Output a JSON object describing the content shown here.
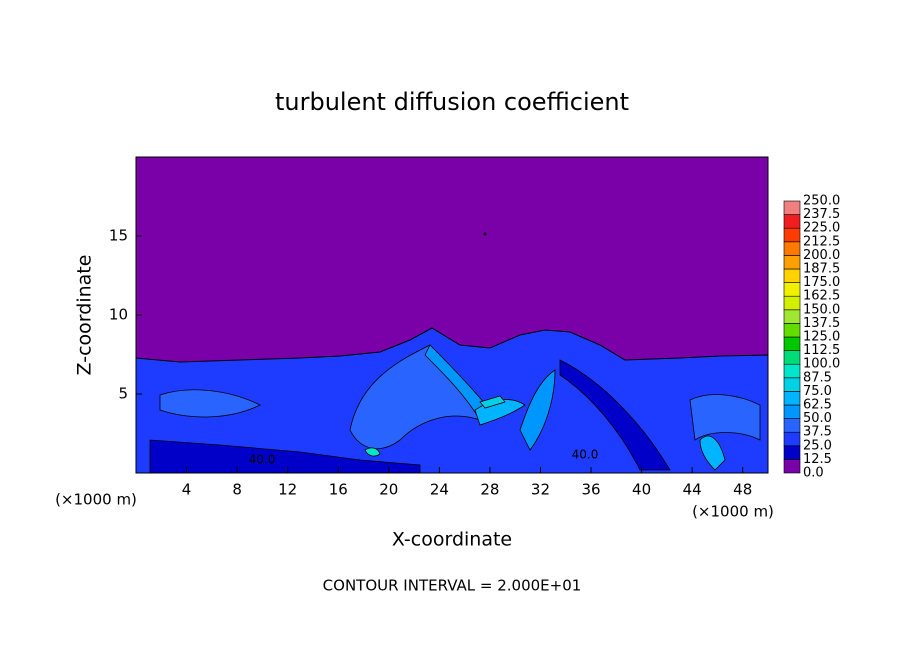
{
  "chart_data": {
    "type": "contour",
    "title": "turbulent diffusion coefficient",
    "x_label": "X-coordinate",
    "y_label": "Z-coordinate",
    "x_unit_left": "(×1000 m)",
    "x_unit_right": "(×1000 m)",
    "footer": "CONTOUR INTERVAL = 2.000E+01",
    "contour_labels": [
      "40.0",
      "40.0"
    ],
    "xlim": [
      0,
      50
    ],
    "ylim": [
      0,
      20
    ],
    "xticks": [
      4,
      8,
      12,
      16,
      20,
      24,
      28,
      32,
      36,
      40,
      44,
      48
    ],
    "yticks": [
      5,
      10,
      15
    ],
    "levels": [
      {
        "value": 0,
        "label": "0.0"
      },
      {
        "value": 12.5,
        "label": "12.5"
      },
      {
        "value": 25,
        "label": "25.0"
      },
      {
        "value": 37.5,
        "label": "37.5"
      },
      {
        "value": 50,
        "label": "50.0"
      },
      {
        "value": 62.5,
        "label": "62.5"
      },
      {
        "value": 75,
        "label": "75.0"
      },
      {
        "value": 87.5,
        "label": "87.5"
      },
      {
        "value": 100,
        "label": "100.0"
      },
      {
        "value": 112.5,
        "label": "112.5"
      },
      {
        "value": 125,
        "label": "125.0"
      },
      {
        "value": 137.5,
        "label": "137.5"
      },
      {
        "value": 150,
        "label": "150.0"
      },
      {
        "value": 162.5,
        "label": "162.5"
      },
      {
        "value": 175,
        "label": "175.0"
      },
      {
        "value": 187.5,
        "label": "187.5"
      },
      {
        "value": 200,
        "label": "200.0"
      },
      {
        "value": 212.5,
        "label": "212.5"
      },
      {
        "value": 225,
        "label": "225.0"
      },
      {
        "value": 237.5,
        "label": "237.5"
      },
      {
        "value": 250,
        "label": "250.0"
      }
    ],
    "colors": [
      "#7a00a8",
      "#0000c8",
      "#1e3cff",
      "#2a64ff",
      "#0096ff",
      "#00b4ff",
      "#00d2e6",
      "#00e6c8",
      "#00dc78",
      "#00c800",
      "#64dc00",
      "#a0e632",
      "#d2f000",
      "#f0f000",
      "#ffd200",
      "#ffa000",
      "#ff7800",
      "#ff3c00",
      "#f01e1e",
      "#f08080"
    ]
  }
}
